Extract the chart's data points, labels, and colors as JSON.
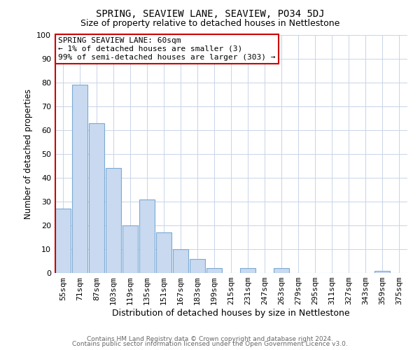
{
  "title": "SPRING, SEAVIEW LANE, SEAVIEW, PO34 5DJ",
  "subtitle": "Size of property relative to detached houses in Nettlestone",
  "xlabel": "Distribution of detached houses by size in Nettlestone",
  "ylabel": "Number of detached properties",
  "categories": [
    "55sqm",
    "71sqm",
    "87sqm",
    "103sqm",
    "119sqm",
    "135sqm",
    "151sqm",
    "167sqm",
    "183sqm",
    "199sqm",
    "215sqm",
    "231sqm",
    "247sqm",
    "263sqm",
    "279sqm",
    "295sqm",
    "311sqm",
    "327sqm",
    "343sqm",
    "359sqm",
    "375sqm"
  ],
  "values": [
    27,
    79,
    63,
    44,
    20,
    31,
    17,
    10,
    6,
    2,
    0,
    2,
    0,
    2,
    0,
    0,
    0,
    0,
    0,
    1,
    0
  ],
  "bar_color": "#c8d9f0",
  "bar_edge_color": "#7aaad4",
  "highlight_bar_edge_color": "#cc0000",
  "annotation_text": "SPRING SEAVIEW LANE: 60sqm\n← 1% of detached houses are smaller (3)\n99% of semi-detached houses are larger (303) →",
  "annotation_box_edge_color": "#cc0000",
  "annotation_box_face_color": "#ffffff",
  "footer_line1": "Contains HM Land Registry data © Crown copyright and database right 2024.",
  "footer_line2": "Contains public sector information licensed under the Open Government Licence v3.0.",
  "ylim": [
    0,
    100
  ],
  "background_color": "#ffffff",
  "grid_color": "#c8d4e8",
  "title_fontsize": 10,
  "subtitle_fontsize": 9,
  "ylabel_fontsize": 8.5,
  "xlabel_fontsize": 9,
  "tick_fontsize": 8,
  "annotation_fontsize": 8,
  "footer_fontsize": 6.5,
  "footer_color": "#666666"
}
